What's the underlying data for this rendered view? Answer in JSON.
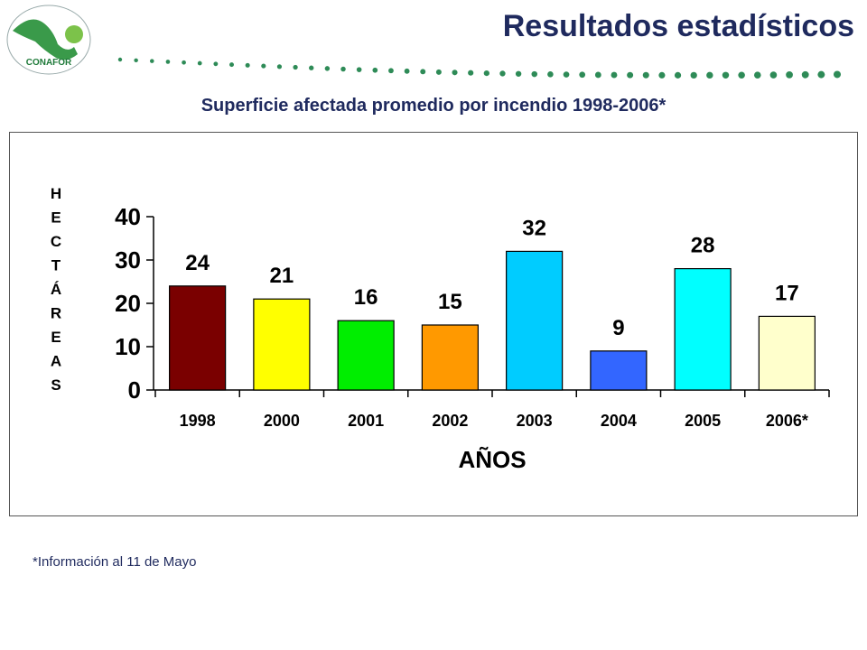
{
  "header": {
    "title": "Resultados estadísticos",
    "logo_text": "CONAFOR"
  },
  "colors": {
    "title": "#1f2a5e",
    "dots": "#2e8b57"
  },
  "chart_data": {
    "type": "bar",
    "title": "Superficie afectada promedio por incendio 1998-2006*",
    "xlabel": "AÑOS",
    "ylabel": "HECTÁREAS",
    "categories": [
      "1998",
      "2000",
      "2001",
      "2002",
      "2003",
      "2004",
      "2005",
      "2006*"
    ],
    "values": [
      24,
      21,
      16,
      15,
      32,
      9,
      28,
      17
    ],
    "colors": [
      "#7a0000",
      "#ffff00",
      "#00ee00",
      "#ff9900",
      "#00ccff",
      "#3366ff",
      "#00ffff",
      "#ffffcc"
    ],
    "ylim": [
      0,
      40
    ],
    "yticks": [
      0,
      10,
      20,
      30,
      40
    ],
    "grid": false,
    "data_labels": true
  },
  "footnote": "*Información al 11 de Mayo"
}
